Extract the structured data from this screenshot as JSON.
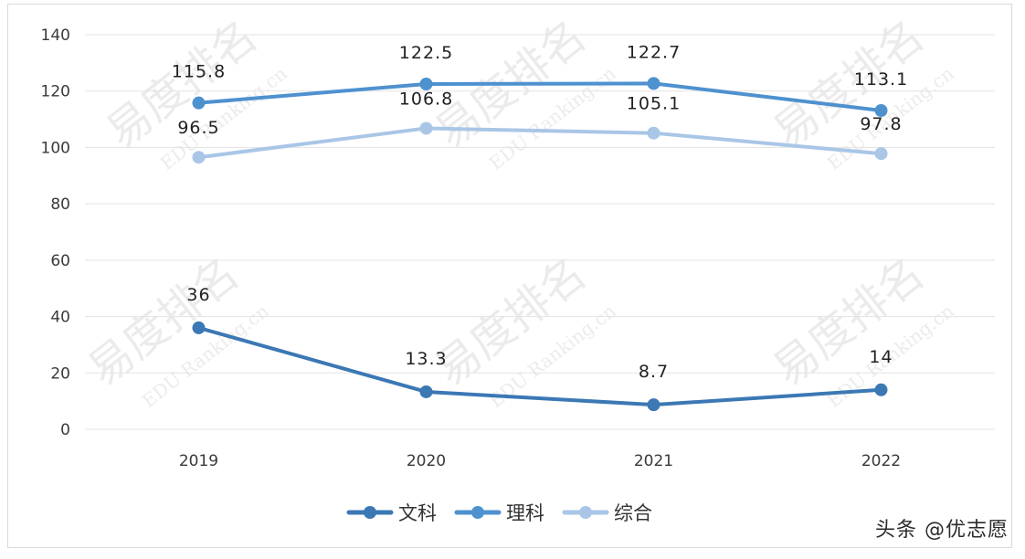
{
  "chart_data": {
    "type": "line",
    "categories": [
      "2019",
      "2020",
      "2021",
      "2022"
    ],
    "series": [
      {
        "name": "文科",
        "values": [
          36,
          13.3,
          8.7,
          14
        ],
        "labels": [
          "36",
          "13.3",
          "8.7",
          "14"
        ],
        "color": "#3b78b4"
      },
      {
        "name": "理科",
        "values": [
          115.8,
          122.5,
          122.7,
          113.1
        ],
        "labels": [
          "115.8",
          "122.5",
          "122.7",
          "113.1"
        ],
        "color": "#4e91cf"
      },
      {
        "name": "综合",
        "values": [
          96.5,
          106.8,
          105.1,
          97.8
        ],
        "labels": [
          "96.5",
          "106.8",
          "105.1",
          "97.8"
        ],
        "color": "#a9c6e6"
      }
    ],
    "yticks": [
      "0",
      "20",
      "40",
      "60",
      "80",
      "100",
      "120",
      "140"
    ],
    "ylim": [
      0,
      140
    ],
    "grid": true,
    "legend": "bottom"
  },
  "watermark": {
    "text_cn": "易度排名",
    "text_en": "EDU Ranking.cn"
  },
  "footer": {
    "credit": "头条 @优志愿"
  }
}
